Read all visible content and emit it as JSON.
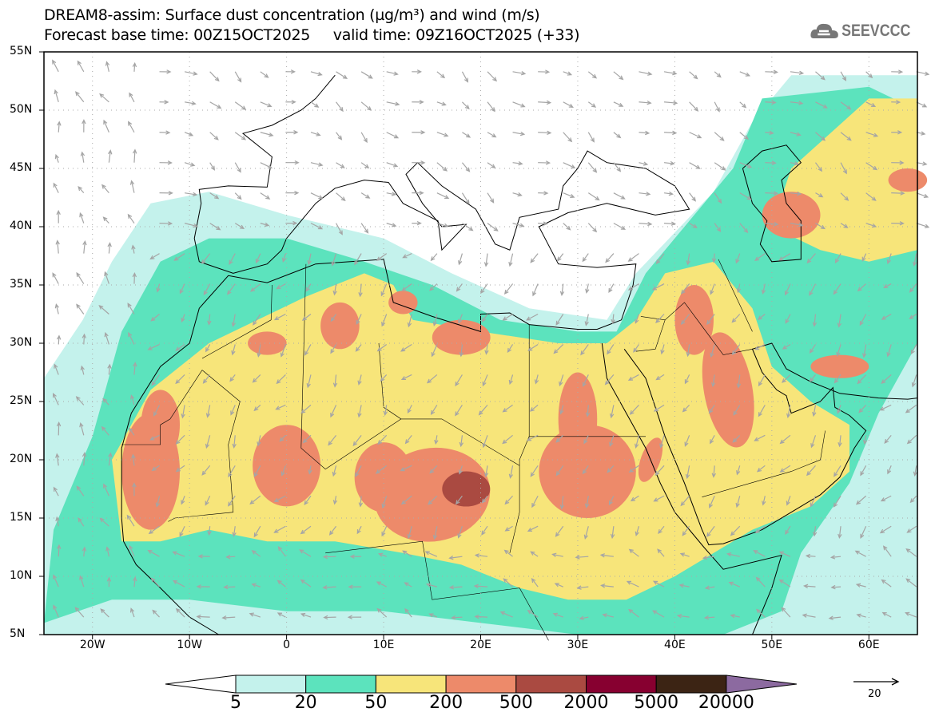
{
  "header": {
    "title": "DREAM8-assim: Surface dust concentration (µg/m³) and wind (m/s)",
    "subtitle": "Forecast base time: 00Z15OCT2025     valid time: 09Z16OCT2025 (+33)",
    "logo": "SEEVCCC"
  },
  "axes": {
    "lat_labels": [
      "55N",
      "50N",
      "45N",
      "40N",
      "35N",
      "30N",
      "25N",
      "20N",
      "15N",
      "10N",
      "5N"
    ],
    "lat_values": [
      55,
      50,
      45,
      40,
      35,
      30,
      25,
      20,
      15,
      10,
      5
    ],
    "lon_labels": [
      "20W",
      "10W",
      "0",
      "10E",
      "20E",
      "30E",
      "40E",
      "50E",
      "60E"
    ],
    "lon_values": [
      -20,
      -10,
      0,
      10,
      20,
      30,
      40,
      50,
      60
    ],
    "lon_range": [
      -25,
      65
    ],
    "lat_range": [
      5,
      55
    ]
  },
  "colorbar": {
    "levels": [
      "5",
      "20",
      "50",
      "200",
      "500",
      "2000",
      "5000",
      "20000"
    ],
    "colors": [
      "#c4f2ec",
      "#5ce3bd",
      "#f7e57a",
      "#ed8a6a",
      "#aa4a41",
      "#870030",
      "#3c2414",
      "#8c6aa0"
    ]
  },
  "wind_reference": {
    "label": "20",
    "unit": "m/s"
  }
}
